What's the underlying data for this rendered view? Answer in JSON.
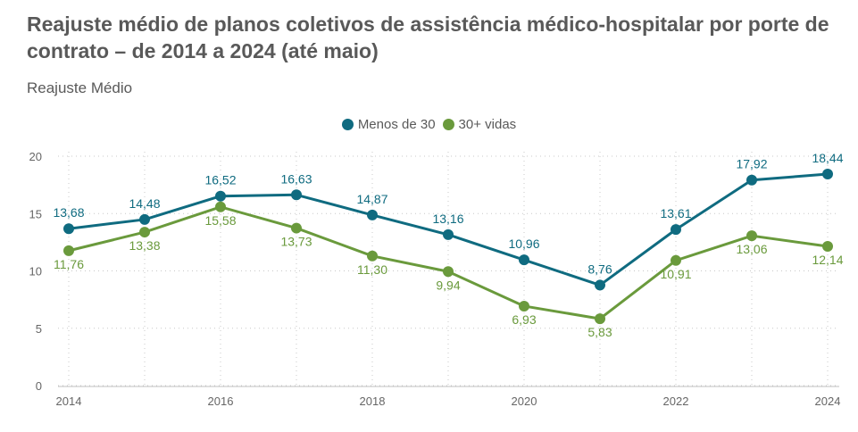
{
  "title": "Reajuste médio de planos coletivos de assistência médico-hospitalar por porte de contrato – de 2014 a 2024 (até maio)",
  "chart_data": {
    "type": "line",
    "ylabel": "Reajuste Médio",
    "x": [
      2014,
      2015,
      2016,
      2017,
      2018,
      2019,
      2020,
      2021,
      2022,
      2023,
      2024
    ],
    "x_tick_labels": [
      "2014",
      "2016",
      "2018",
      "2020",
      "2022",
      "2024"
    ],
    "y_tick_labels": [
      "0",
      "5",
      "10",
      "15",
      "20"
    ],
    "ylim": [
      0,
      20
    ],
    "grid": true,
    "legend": "top-center",
    "series": [
      {
        "name": "Menos de 30",
        "color": "#0f6b80",
        "values": [
          13.68,
          14.48,
          16.52,
          16.63,
          14.87,
          13.16,
          10.96,
          8.76,
          13.61,
          17.92,
          18.44
        ],
        "labels": [
          "13,68",
          "14,48",
          "16,52",
          "16,63",
          "14,87",
          "13,16",
          "10,96",
          "8,76",
          "13,61",
          "17,92",
          "18,44"
        ]
      },
      {
        "name": "30+ vidas",
        "color": "#6a9a3c",
        "values": [
          11.76,
          13.38,
          15.58,
          13.73,
          11.3,
          9.94,
          6.93,
          5.83,
          10.91,
          13.06,
          12.14
        ],
        "labels": [
          "11,76",
          "13,38",
          "15,58",
          "13,73",
          "11,30",
          "9,94",
          "6,93",
          "5,83",
          "10,91",
          "13,06",
          "12,14"
        ]
      }
    ]
  }
}
